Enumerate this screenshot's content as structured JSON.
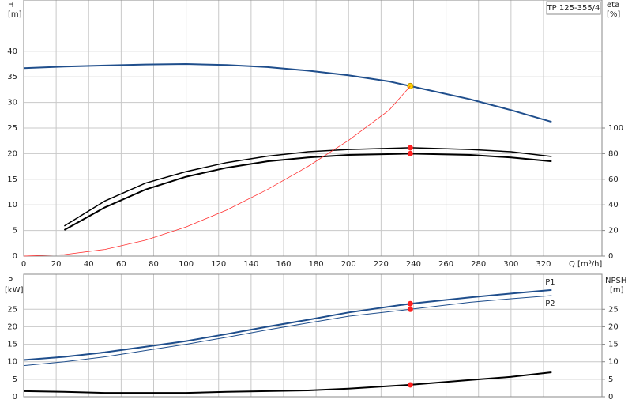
{
  "chart_data": [
    {
      "type": "line",
      "title": "TP 125-355/4",
      "ylabel": "H",
      "yunit": "[m]",
      "y2label": "eta",
      "y2unit": "[%]",
      "xlabel": "Q [m³/h]",
      "xlim": [
        0,
        356
      ],
      "xticks": [
        0,
        20,
        40,
        60,
        80,
        100,
        120,
        140,
        160,
        180,
        200,
        220,
        240,
        260,
        280,
        300,
        320
      ],
      "ylim": [
        0,
        50
      ],
      "yticks": [
        0,
        5,
        10,
        15,
        20,
        25,
        30,
        35,
        40
      ],
      "y2lim": [
        0,
        200
      ],
      "y2ticks": [
        0,
        20,
        40,
        60,
        80,
        100
      ],
      "grid": true,
      "series": [
        {
          "color": "#1f4e8c",
          "width": 2,
          "x": [
            0,
            25,
            50,
            75,
            100,
            125,
            150,
            175,
            200,
            225,
            238,
            275,
            300,
            325
          ],
          "values": [
            36.7,
            37.0,
            37.2,
            37.4,
            37.5,
            37.3,
            36.9,
            36.2,
            35.3,
            34.1,
            33.2,
            30.6,
            28.5,
            26.2
          ],
          "marker": {
            "x": 238,
            "y": 33.2,
            "color": "#ffd700"
          }
        },
        {
          "color": "#000000",
          "width": 1.5,
          "axis": "y2",
          "x": [
            25,
            50,
            75,
            100,
            125,
            150,
            175,
            200,
            238,
            275,
            300,
            325
          ],
          "values": [
            23.5,
            43,
            57,
            66,
            73,
            78,
            81.5,
            83.3,
            84.6,
            83.3,
            81.5,
            77.8
          ],
          "marker": {
            "x": 238,
            "y": 84.6,
            "color": "#ff2020"
          }
        },
        {
          "color": "#000000",
          "width": 2,
          "axis": "y2",
          "x": [
            25,
            50,
            75,
            100,
            125,
            150,
            175,
            200,
            238,
            275,
            300,
            325
          ],
          "values": [
            20.4,
            38,
            52,
            62,
            69,
            74,
            77,
            79,
            80,
            79,
            77,
            74
          ],
          "marker": {
            "x": 238,
            "y": 80,
            "color": "#ff2020"
          }
        },
        {
          "color": "#ff3030",
          "width": 0.8,
          "x": [
            0,
            25,
            50,
            75,
            100,
            125,
            150,
            175,
            200,
            225,
            238
          ],
          "values": [
            0,
            0.3,
            1.3,
            3.1,
            5.7,
            9.0,
            13.0,
            17.5,
            22.6,
            28.5,
            33.2
          ]
        }
      ]
    },
    {
      "type": "line",
      "ylabel": "P",
      "yunit": "[kW]",
      "y2label": "NPSH",
      "y2unit": "[m]",
      "xlim": [
        0,
        356
      ],
      "ylim": [
        0,
        35
      ],
      "yticks": [
        0,
        5,
        10,
        15,
        20,
        25
      ],
      "y2lim": [
        0,
        35
      ],
      "y2ticks": [
        0,
        5,
        10,
        15,
        20,
        25
      ],
      "grid": true,
      "series": [
        {
          "name": "P1",
          "color": "#1f4e8c",
          "width": 2,
          "x": [
            0,
            25,
            50,
            75,
            100,
            125,
            150,
            175,
            200,
            238,
            275,
            300,
            325
          ],
          "values": [
            10.5,
            11.4,
            12.7,
            14.3,
            15.9,
            17.9,
            20,
            22,
            24.1,
            26.6,
            28.4,
            29.5,
            30.5
          ],
          "marker": {
            "x": 238,
            "y": 26.6,
            "color": "#ff2020"
          }
        },
        {
          "name": "P2",
          "color": "#1f4e8c",
          "width": 1,
          "x": [
            0,
            25,
            50,
            75,
            100,
            125,
            150,
            175,
            200,
            238,
            275,
            300,
            325
          ],
          "values": [
            8.9,
            10,
            11.4,
            13.2,
            15,
            17,
            19.1,
            21.1,
            23,
            25,
            27,
            28,
            28.9
          ],
          "marker": {
            "x": 238,
            "y": 25,
            "color": "#ff2020"
          }
        },
        {
          "color": "#000000",
          "width": 2,
          "axis": "y2",
          "x": [
            0,
            25,
            50,
            75,
            100,
            125,
            150,
            175,
            200,
            238,
            275,
            300,
            325
          ],
          "values": [
            1.6,
            1.4,
            1.1,
            1.1,
            1.1,
            1.4,
            1.6,
            1.8,
            2.3,
            3.4,
            4.8,
            5.7,
            7.0
          ],
          "marker": {
            "x": 238,
            "y": 3.4,
            "color": "#ff2020"
          }
        }
      ]
    }
  ]
}
